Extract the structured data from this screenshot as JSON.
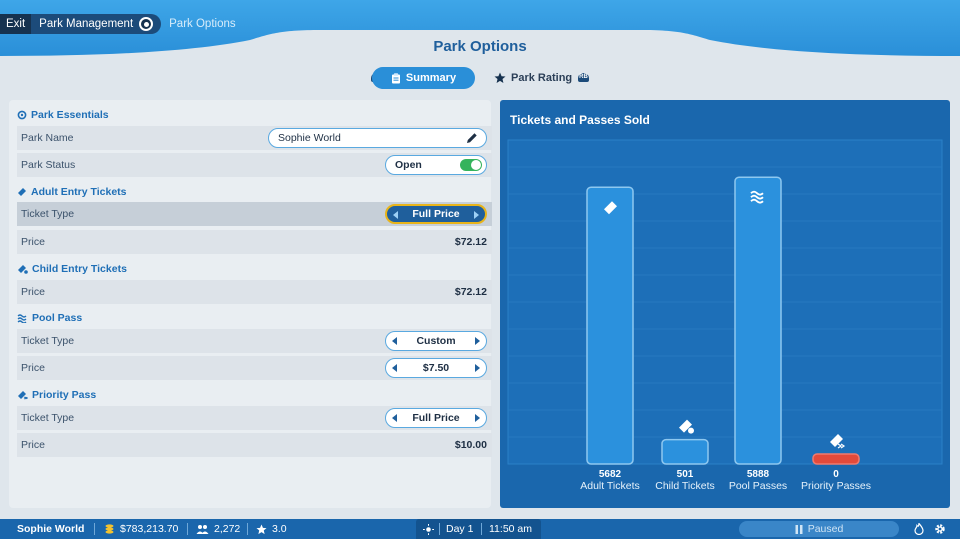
{
  "breadcrumb": {
    "exit": "Exit",
    "park_management": "Park Management",
    "park_options": "Park Options"
  },
  "page_title": "Park Options",
  "tabs": [
    {
      "label": "Summary",
      "active": true,
      "icon": "clipboard-icon"
    },
    {
      "label": "Park Rating",
      "active": false,
      "icon": "star-icon"
    }
  ],
  "sections": {
    "essentials": {
      "heading": "Park Essentials",
      "park_name_label": "Park Name",
      "park_name_value": "Sophie World",
      "park_status_label": "Park Status",
      "park_status_value": "Open"
    },
    "adult": {
      "heading": "Adult Entry Tickets",
      "ticket_type_label": "Ticket Type",
      "ticket_type_value": "Full Price",
      "price_label": "Price",
      "price_value": "$72.12"
    },
    "child": {
      "heading": "Child Entry Tickets",
      "price_label": "Price",
      "price_value": "$72.12"
    },
    "pool": {
      "heading": "Pool Pass",
      "ticket_type_label": "Ticket Type",
      "ticket_type_value": "Custom",
      "price_label": "Price",
      "price_value": "$7.50"
    },
    "priority": {
      "heading": "Priority Pass",
      "ticket_type_label": "Ticket Type",
      "ticket_type_value": "Full Price",
      "price_label": "Price",
      "price_value": "$10.00"
    }
  },
  "chart_data": {
    "type": "bar",
    "title": "Tickets and Passes Sold",
    "categories": [
      "Adult Tickets",
      "Child Tickets",
      "Pool Passes",
      "Priority Passes"
    ],
    "values": [
      5682,
      501,
      5888,
      0
    ],
    "ylim": [
      0,
      6200
    ],
    "grid": true,
    "bar_colors": [
      "#2b91dd",
      "#2b91dd",
      "#2b91dd",
      "#e24a3b"
    ],
    "bar_icons": [
      "ticket-icon",
      "child-ticket-icon",
      "pool-icon",
      "priority-pass-icon"
    ]
  },
  "status_bar": {
    "park_name": "Sophie World",
    "money": "$783,213.70",
    "guests": "2,272",
    "rating": "3.0",
    "day": "Day 1",
    "time": "11:50 am",
    "paused": "Paused"
  },
  "colors": {
    "accent": "#2a8fd8",
    "header": "#1f5f9c",
    "chart_bg": "#1a67ad",
    "bar": "#2b91dd",
    "priority_bar": "#e24a3b",
    "highlight": "#e8b419"
  }
}
